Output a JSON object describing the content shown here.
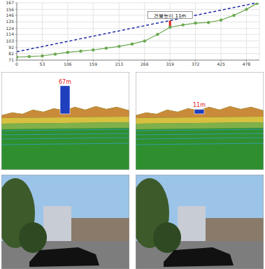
{
  "chart_data": {
    "type": "line",
    "xlim": [
      0,
      505
    ],
    "xticks": [
      0,
      53,
      106,
      159,
      213,
      266,
      319,
      372,
      425,
      478
    ],
    "ylim": [
      71,
      167
    ],
    "yticks": [
      71,
      82,
      92,
      103,
      114,
      124,
      135,
      146,
      156,
      167
    ],
    "grid": true,
    "series": [
      {
        "color": "#1c2aa8",
        "line_style": "dashed",
        "marker": "none",
        "x": [
          0,
          500
        ],
        "values": [
          85,
          167
        ]
      },
      {
        "color": "#6aa84f",
        "line_style": "solid",
        "marker": "circle",
        "x": [
          0,
          26,
          53,
          80,
          106,
          133,
          159,
          186,
          213,
          240,
          266,
          293,
          319,
          346,
          372,
          399,
          425,
          452,
          478,
          500
        ],
        "values": [
          76,
          77,
          78,
          81,
          84,
          86,
          88,
          91,
          94,
          98,
          103,
          114,
          126,
          130,
          133,
          134,
          138,
          146,
          156,
          166
        ]
      }
    ],
    "annotations": [
      {
        "text": "건물높이 11m",
        "x": 319,
        "y0": 126,
        "y1": 137
      }
    ]
  },
  "terrain_views": [
    {
      "building_height": 67,
      "label": "67m"
    },
    {
      "building_height": 11,
      "label": "11m"
    }
  ]
}
